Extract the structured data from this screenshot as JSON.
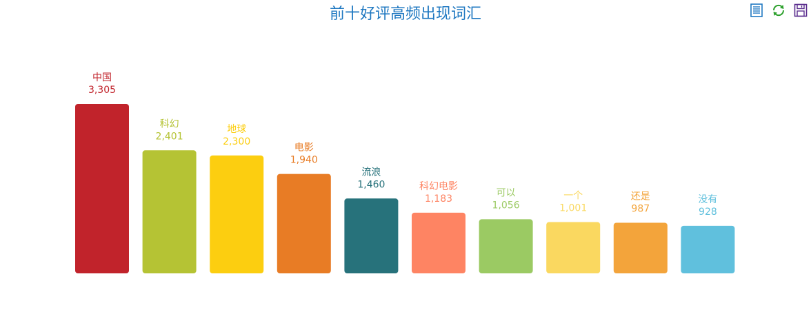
{
  "title": "前十好评高频出现词汇",
  "toolbox": {
    "data_view_icon": "data-view-icon",
    "refresh_icon": "refresh-icon",
    "save_icon": "save-image-icon",
    "colors": {
      "data_view": "#1f78c1",
      "refresh": "#2ca02c",
      "save": "#5b2d8e"
    }
  },
  "chart_data": {
    "type": "bar",
    "title": "前十好评高频出现词汇",
    "xlabel": "",
    "ylabel": "",
    "grid": false,
    "legend": "none",
    "ylim": [
      0,
      3305
    ],
    "categories": [
      "中国",
      "科幻",
      "地球",
      "电影",
      "流浪",
      "科幻电影",
      "可以",
      "一个",
      "还是",
      "没有"
    ],
    "values": [
      3305,
      2401,
      2300,
      1940,
      1460,
      1183,
      1056,
      1001,
      987,
      928
    ],
    "value_labels": [
      "3,305",
      "2,401",
      "2,300",
      "1,940",
      "1,460",
      "1,183",
      "1,056",
      "1,001",
      "987",
      "928"
    ],
    "colors": [
      "#c1232b",
      "#b5c334",
      "#fcce10",
      "#e87c25",
      "#27727b",
      "#fe8463",
      "#9bca63",
      "#fad860",
      "#f3a43b",
      "#60c0dd"
    ]
  }
}
